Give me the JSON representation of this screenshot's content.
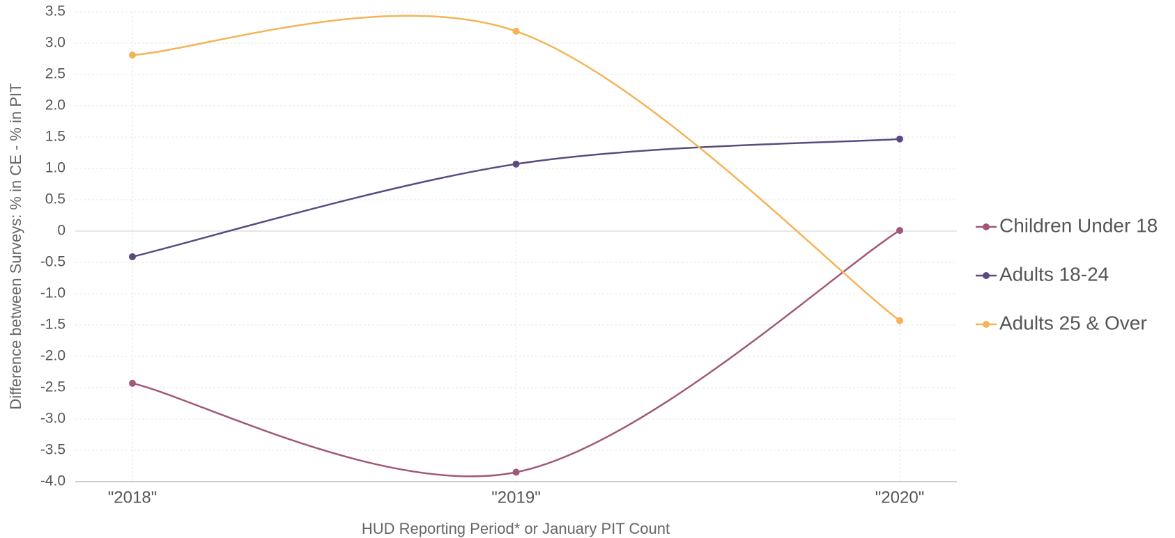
{
  "chart_data": {
    "type": "line",
    "x_label": "HUD Reporting Period* or January PIT Count",
    "y_label": "Difference between Surveys: % in CE - % in PIT",
    "categories": [
      "\"2018\"",
      "\"2019\"",
      "\"2020\""
    ],
    "series": [
      {
        "name": "Children Under 18",
        "color": "#a0587a",
        "values": [
          -2.43,
          -3.85,
          0.01
        ]
      },
      {
        "name": "Adults 18-24",
        "color": "#5b4a80",
        "values": [
          -0.41,
          1.07,
          1.47
        ]
      },
      {
        "name": "Adults 25 & Over",
        "color": "#f5b356",
        "values": [
          2.81,
          3.19,
          -1.43
        ]
      }
    ],
    "ylim": [
      -4,
      3.5
    ],
    "yticks": [
      {
        "value": -4,
        "label": "-4.0"
      },
      -3.5,
      {
        "value": -3,
        "label": "-3.0"
      },
      -2.5,
      {
        "value": -2,
        "label": "-2.0"
      },
      -1.5,
      {
        "value": -1,
        "label": "-1.0"
      },
      -0.5,
      0,
      0.5,
      {
        "value": 1,
        "label": "1.0"
      },
      1.5,
      {
        "value": 2,
        "label": "2.0"
      },
      2.5,
      {
        "value": 3,
        "label": "3.0"
      },
      3.5
    ],
    "grid": true,
    "legend_position": "right"
  }
}
